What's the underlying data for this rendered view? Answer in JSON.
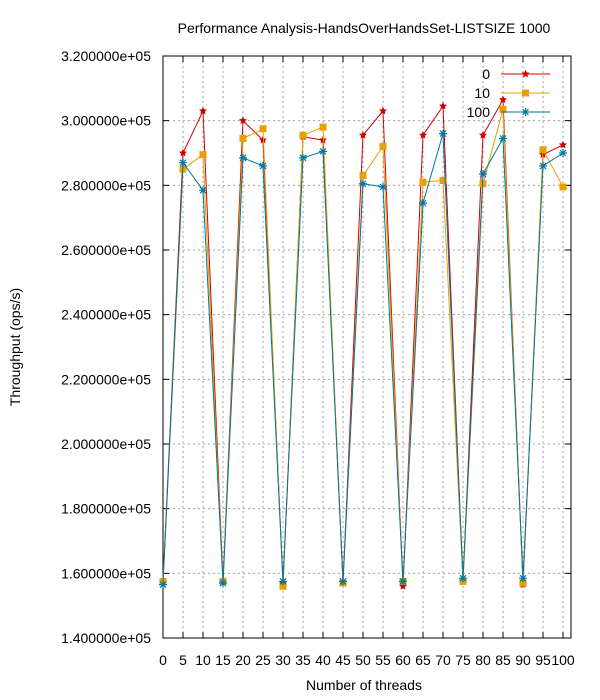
{
  "chart_data": {
    "type": "line",
    "title": "Performance Analysis-HandsOverHandsSet-LISTSIZE 1000",
    "xlabel": "Number of threads",
    "ylabel": "Throughput (ops/s)",
    "xlim": [
      0,
      102
    ],
    "ylim": [
      140000,
      320000
    ],
    "grid": true,
    "legend_position": "top-right",
    "x": [
      0,
      5,
      10,
      15,
      20,
      25,
      30,
      35,
      40,
      45,
      50,
      55,
      60,
      65,
      70,
      75,
      80,
      85,
      90,
      95,
      100
    ],
    "xtick_labels": [
      "0",
      "5",
      "10",
      "15",
      "20",
      "25",
      "30",
      "35",
      "40",
      "45",
      "50",
      "55",
      "60",
      "65",
      "70",
      "75",
      "80",
      "85",
      "90",
      "95",
      "100"
    ],
    "yticks": [
      140000,
      160000,
      180000,
      200000,
      220000,
      240000,
      260000,
      280000,
      300000,
      320000
    ],
    "ytick_labels": [
      "1.400000e+05",
      "1.600000e+05",
      "1.800000e+05",
      "2.000000e+05",
      "2.200000e+05",
      "2.400000e+05",
      "2.600000e+05",
      "2.800000e+05",
      "3.000000e+05",
      "3.200000e+05"
    ],
    "series": [
      {
        "name": "0",
        "color": "#d40000",
        "marker": "star",
        "values": [
          157500,
          290000,
          303000,
          157500,
          300000,
          294000,
          157000,
          295000,
          294000,
          157000,
          295500,
          303000,
          156000,
          295500,
          304500,
          157500,
          295500,
          306500,
          156500,
          289500,
          292500
        ]
      },
      {
        "name": "10",
        "color": "#e8a000",
        "marker": "square",
        "values": [
          157500,
          285000,
          289500,
          157500,
          294500,
          297500,
          156000,
          295500,
          298000,
          157000,
          283000,
          292000,
          157500,
          281000,
          281500,
          157500,
          280500,
          303500,
          157000,
          291000,
          279500
        ]
      },
      {
        "name": "100",
        "color": "#00789f",
        "marker": "asterisk",
        "values": [
          156500,
          287000,
          278500,
          157000,
          288500,
          286000,
          157500,
          288500,
          290500,
          157500,
          280500,
          279500,
          157500,
          274500,
          296000,
          158500,
          283500,
          294500,
          158500,
          286000,
          290000
        ]
      }
    ]
  }
}
